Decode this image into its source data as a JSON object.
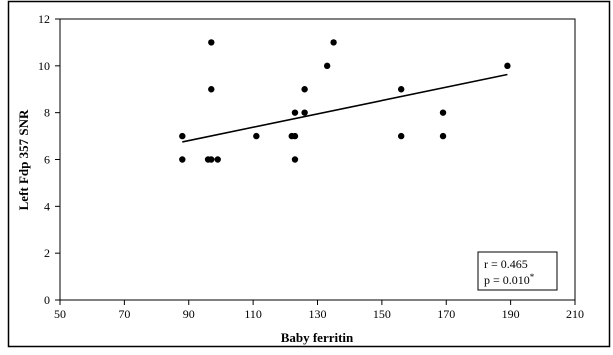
{
  "chart_data": {
    "type": "scatter",
    "title": "",
    "xlabel": "Baby ferritin",
    "ylabel": "Left Fdp 357 SNR",
    "xlim": [
      50,
      210
    ],
    "ylim": [
      0,
      12
    ],
    "x_ticks": [
      50,
      70,
      90,
      110,
      130,
      150,
      170,
      190,
      210
    ],
    "y_ticks": [
      0,
      2,
      4,
      6,
      8,
      10,
      12
    ],
    "x_tick_labels": [
      "50",
      "70",
      "90",
      "110",
      "130",
      "150",
      "170",
      "190",
      "210"
    ],
    "y_tick_labels": [
      "0",
      "2",
      "4",
      "6",
      "8",
      "10",
      "12"
    ],
    "grid": false,
    "points": [
      {
        "x": 88,
        "y": 7
      },
      {
        "x": 88,
        "y": 6
      },
      {
        "x": 97,
        "y": 11
      },
      {
        "x": 97,
        "y": 9
      },
      {
        "x": 96,
        "y": 6
      },
      {
        "x": 97,
        "y": 6
      },
      {
        "x": 99,
        "y": 6
      },
      {
        "x": 111,
        "y": 7
      },
      {
        "x": 122,
        "y": 7
      },
      {
        "x": 123,
        "y": 7
      },
      {
        "x": 123,
        "y": 8
      },
      {
        "x": 123,
        "y": 6
      },
      {
        "x": 126,
        "y": 9
      },
      {
        "x": 126,
        "y": 8
      },
      {
        "x": 133,
        "y": 10
      },
      {
        "x": 135,
        "y": 11
      },
      {
        "x": 156,
        "y": 9
      },
      {
        "x": 156,
        "y": 7
      },
      {
        "x": 169,
        "y": 8
      },
      {
        "x": 169,
        "y": 7
      },
      {
        "x": 189,
        "y": 10
      }
    ],
    "trendline": {
      "x": [
        88,
        189
      ],
      "y": [
        6.75,
        9.63
      ]
    },
    "annotation": {
      "r": "r = 0.465",
      "p": "p = 0.010",
      "p_marker": "*",
      "placement": "bottom-right"
    }
  }
}
